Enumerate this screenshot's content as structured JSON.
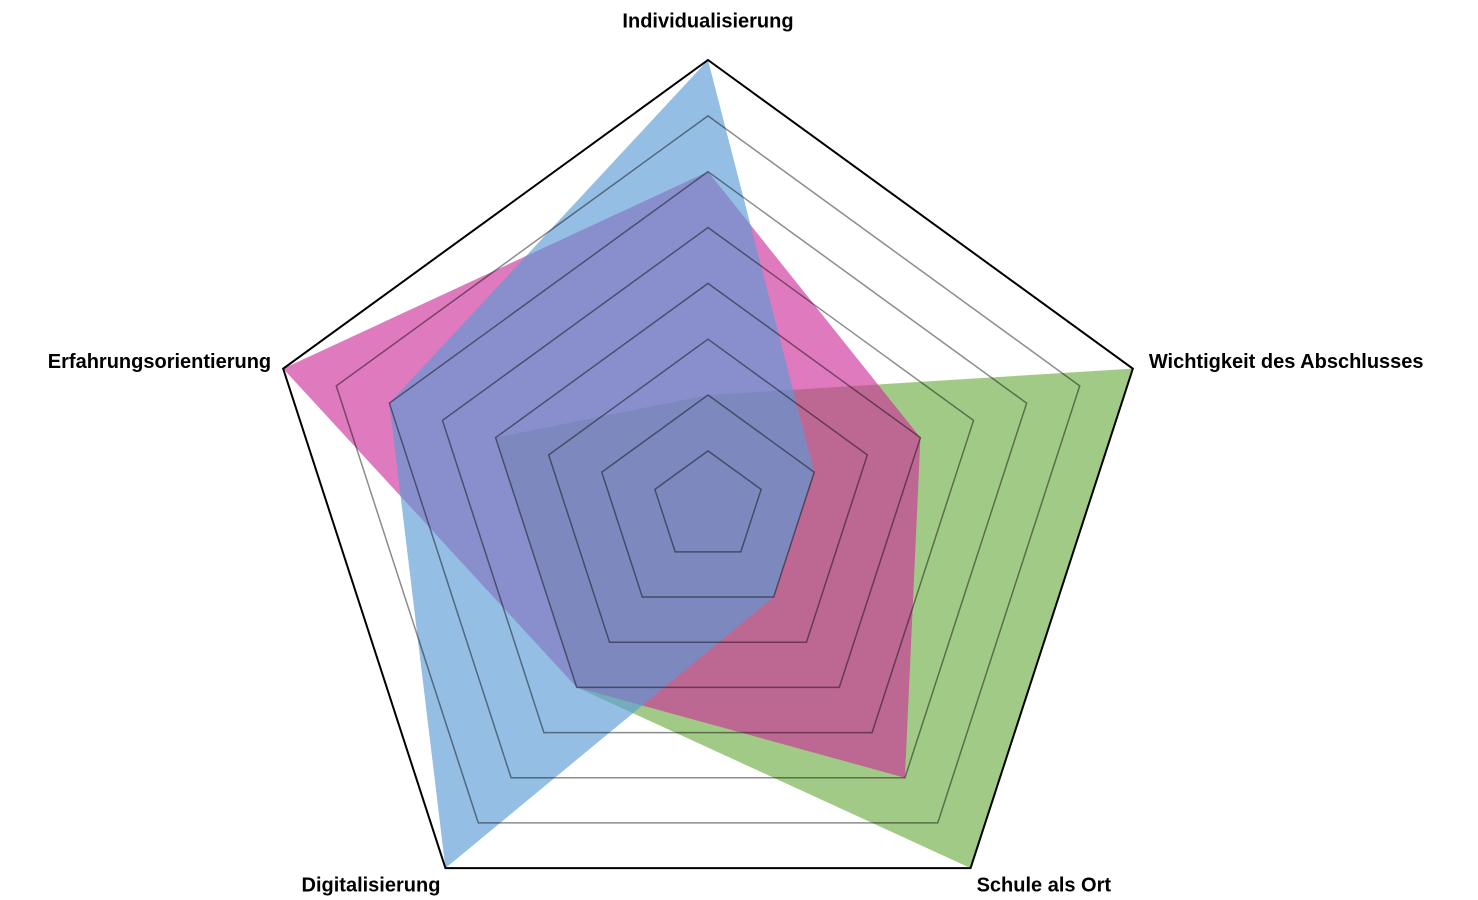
{
  "chart_data": {
    "type": "radar",
    "categories": [
      "Individualisierung",
      "Wichtigkeit des Abschlusses",
      "Schule als Ort",
      "Digitalisierung",
      "Erfahrungsorientierung"
    ],
    "series": [
      {
        "color": "#70ad47",
        "values": [
          2,
          8,
          8,
          4,
          4
        ]
      },
      {
        "color": "#cc3399",
        "values": [
          6,
          4,
          6,
          4,
          8
        ]
      },
      {
        "color": "#5b9bd5",
        "values": [
          8,
          2,
          2,
          8,
          6
        ]
      }
    ],
    "rlim": [
      0,
      8
    ],
    "rticks": [
      1,
      2,
      3,
      4,
      5,
      6,
      7,
      8
    ],
    "grid": true
  }
}
